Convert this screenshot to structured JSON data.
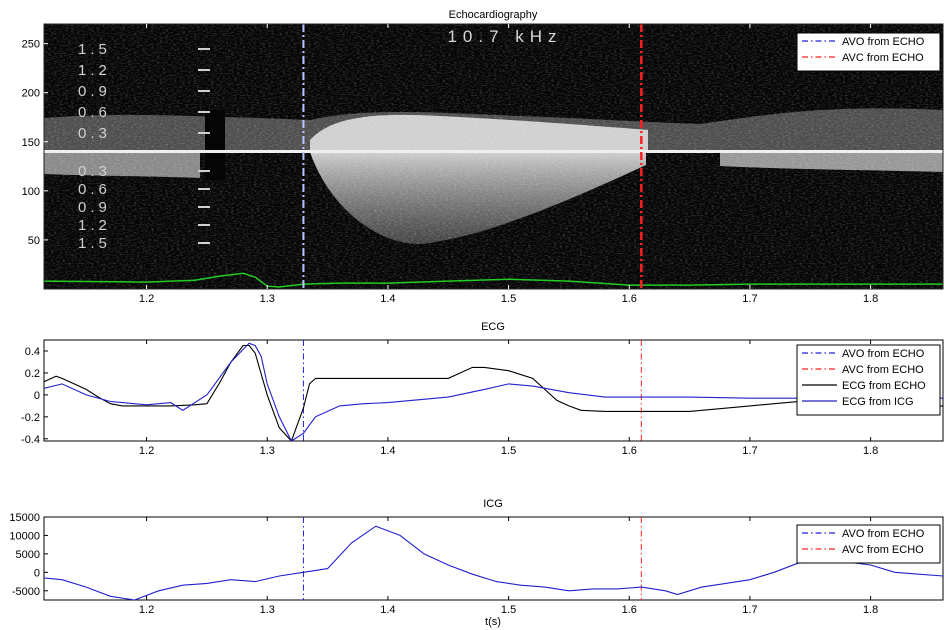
{
  "colors": {
    "avo": "#2222dd",
    "avc": "#ff2020",
    "ecg_echo": "#000000",
    "ecg_icg": "#2020cc",
    "icg": "#2020cc",
    "echo_bg": "#050505",
    "echo_trace": "#22cc22"
  },
  "x_axis": {
    "xlabel": "t(s)",
    "xlim": [
      1.115,
      1.86
    ],
    "ticks": [
      1.2,
      1.3,
      1.4,
      1.5,
      1.6,
      1.7,
      1.8
    ],
    "tick_labels": [
      "1.2",
      "1.3",
      "1.4",
      "1.5",
      "1.6",
      "1.7",
      "1.8"
    ]
  },
  "markers": {
    "avo_t": 1.33,
    "avc_t": 1.61
  },
  "chart_data": [
    {
      "type": "heatmap",
      "title": "Echocardiography",
      "ylim": [
        0,
        270
      ],
      "yticks": [
        50,
        100,
        150,
        200,
        250
      ],
      "ytick_labels": [
        "50",
        "100",
        "150",
        "200",
        "250"
      ],
      "image_text": "10.7 kHz",
      "velocity_labels_upper": [
        "1.5",
        "1.2",
        "0.9",
        "0.6",
        "0.3"
      ],
      "velocity_labels_lower": [
        "0.3",
        "0.6",
        "0.9",
        "1.2",
        "1.5"
      ],
      "baseline_y": 142,
      "legend": [
        "AVO from ECHO",
        "AVC from ECHO"
      ],
      "legend_position": "top-right",
      "green_trace": {
        "x": [
          1.115,
          1.2,
          1.24,
          1.26,
          1.28,
          1.29,
          1.3,
          1.31,
          1.33,
          1.36,
          1.4,
          1.45,
          1.5,
          1.55,
          1.6,
          1.65,
          1.7,
          1.75,
          1.8,
          1.86
        ],
        "y": [
          8,
          7,
          9,
          13,
          16,
          12,
          3,
          2,
          5,
          6,
          6,
          8,
          10,
          8,
          4,
          4,
          5,
          5,
          5,
          5
        ]
      }
    },
    {
      "type": "line",
      "title": "ECG",
      "ylim": [
        -0.42,
        0.5
      ],
      "yticks": [
        -0.4,
        -0.2,
        0,
        0.2,
        0.4
      ],
      "ytick_labels": [
        "-0.4",
        "-0.2",
        "0",
        "0.2",
        "0.4"
      ],
      "legend": [
        "AVO from ECHO",
        "AVC from ECHO",
        "ECG from ECHO",
        "ECG from ICG"
      ],
      "legend_position": "top-right",
      "series": [
        {
          "name": "ECG from ECHO",
          "x": [
            1.115,
            1.125,
            1.13,
            1.14,
            1.15,
            1.16,
            1.17,
            1.18,
            1.19,
            1.2,
            1.22,
            1.24,
            1.25,
            1.26,
            1.27,
            1.28,
            1.285,
            1.29,
            1.3,
            1.31,
            1.32,
            1.33,
            1.335,
            1.34,
            1.35,
            1.4,
            1.45,
            1.46,
            1.47,
            1.48,
            1.5,
            1.52,
            1.53,
            1.54,
            1.55,
            1.56,
            1.58,
            1.6,
            1.65,
            1.7,
            1.75,
            1.8,
            1.86
          ],
          "y": [
            0.12,
            0.17,
            0.15,
            0.1,
            0.05,
            -0.02,
            -0.08,
            -0.1,
            -0.1,
            -0.1,
            -0.1,
            -0.09,
            -0.08,
            0.1,
            0.3,
            0.45,
            0.45,
            0.38,
            0.0,
            -0.3,
            -0.42,
            -0.12,
            0.1,
            0.15,
            0.15,
            0.15,
            0.15,
            0.2,
            0.25,
            0.25,
            0.22,
            0.15,
            0.05,
            -0.05,
            -0.1,
            -0.14,
            -0.15,
            -0.15,
            -0.15,
            -0.1,
            -0.05,
            -0.1,
            -0.1
          ]
        },
        {
          "name": "ECG from ICG",
          "x": [
            1.115,
            1.13,
            1.15,
            1.17,
            1.2,
            1.22,
            1.23,
            1.25,
            1.27,
            1.285,
            1.29,
            1.295,
            1.3,
            1.31,
            1.32,
            1.33,
            1.34,
            1.36,
            1.38,
            1.4,
            1.45,
            1.48,
            1.5,
            1.52,
            1.55,
            1.58,
            1.6,
            1.65,
            1.7,
            1.75,
            1.8,
            1.86
          ],
          "y": [
            0.06,
            0.1,
            0.0,
            -0.06,
            -0.09,
            -0.07,
            -0.14,
            0.0,
            0.3,
            0.47,
            0.45,
            0.35,
            0.1,
            -0.2,
            -0.42,
            -0.35,
            -0.2,
            -0.1,
            -0.08,
            -0.07,
            -0.02,
            0.05,
            0.1,
            0.08,
            0.02,
            -0.02,
            -0.02,
            -0.02,
            -0.03,
            -0.03,
            -0.02,
            -0.03
          ]
        }
      ]
    },
    {
      "type": "line",
      "title": "ICG",
      "ylim": [
        -7500,
        15000
      ],
      "yticks": [
        -5000,
        0,
        5000,
        10000,
        15000
      ],
      "ytick_labels": [
        "-5000",
        "0",
        "5000",
        "10000",
        "15000"
      ],
      "legend": [
        "AVO from ECHO",
        "AVC from ECHO"
      ],
      "legend_position": "top-right",
      "series": [
        {
          "x": [
            1.115,
            1.13,
            1.15,
            1.17,
            1.19,
            1.21,
            1.23,
            1.25,
            1.27,
            1.29,
            1.31,
            1.33,
            1.35,
            1.37,
            1.39,
            1.41,
            1.43,
            1.45,
            1.47,
            1.49,
            1.51,
            1.53,
            1.55,
            1.57,
            1.59,
            1.61,
            1.63,
            1.64,
            1.66,
            1.68,
            1.7,
            1.72,
            1.74,
            1.76,
            1.78,
            1.8,
            1.82,
            1.84,
            1.86
          ],
          "y": [
            -1500,
            -2000,
            -4000,
            -6500,
            -7500,
            -5000,
            -3500,
            -3000,
            -2000,
            -2500,
            -1000,
            0,
            1000,
            8000,
            12500,
            10000,
            5000,
            2000,
            -500,
            -2500,
            -3500,
            -4000,
            -5000,
            -4500,
            -4500,
            -4000,
            -5000,
            -6000,
            -4000,
            -3000,
            -2000,
            0,
            2500,
            2800,
            2800,
            2000,
            0,
            -500,
            -1000
          ]
        }
      ]
    }
  ]
}
